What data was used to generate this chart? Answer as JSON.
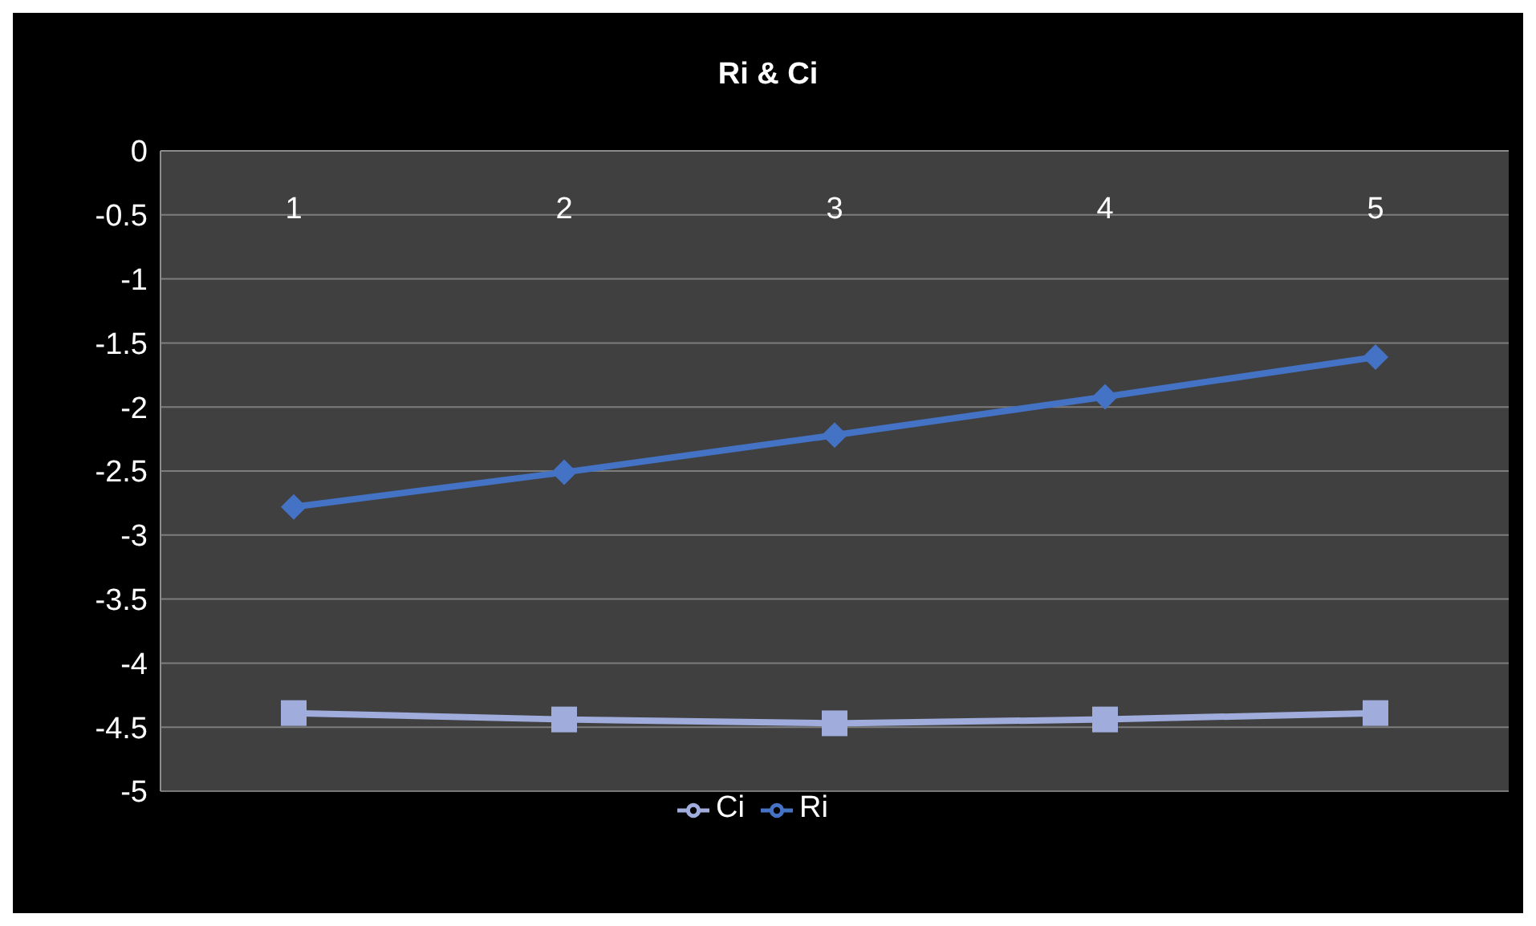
{
  "chart_data": {
    "type": "line",
    "title": "Ri & Ci",
    "categories": [
      "1",
      "2",
      "3",
      "4",
      "5"
    ],
    "series": [
      {
        "name": "Ri",
        "color": "#4472c4",
        "marker": "diamond",
        "values": [
          -2.78,
          -2.51,
          -2.22,
          -1.92,
          -1.61
        ]
      },
      {
        "name": "Ci",
        "color": "#9facdc",
        "marker": "square",
        "values": [
          -4.39,
          -4.44,
          -4.47,
          -4.44,
          -4.39
        ]
      }
    ],
    "ylim": [
      -5,
      0
    ],
    "yticks": [
      0,
      -0.5,
      -1,
      -1.5,
      -2,
      -2.5,
      -3,
      -3.5,
      -4,
      -4.5,
      -5
    ],
    "grid": "y",
    "legend": "bottom"
  }
}
